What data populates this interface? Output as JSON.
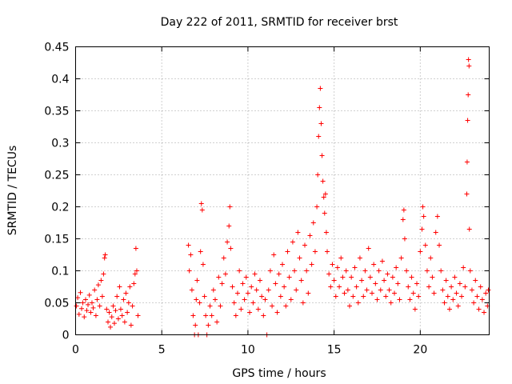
{
  "chart_data": {
    "type": "scatter",
    "title": "Day 222 of 2011, SRMTID for receiver brst",
    "xlabel": "GPS time / hours",
    "ylabel": "SRMTID / TECUs",
    "xlim": [
      0,
      24
    ],
    "ylim": [
      0,
      0.45
    ],
    "xticks": [
      0,
      5,
      10,
      15,
      20
    ],
    "xtick_labels": [
      "0",
      "5",
      "10",
      "15",
      "20"
    ],
    "yticks": [
      0,
      0.05,
      0.1,
      0.15,
      0.2,
      0.25,
      0.3,
      0.35,
      0.4,
      0.45
    ],
    "ytick_labels": [
      "0",
      "0.05",
      "0.1",
      "0.15",
      "0.2",
      "0.25",
      "0.3",
      "0.35",
      "0.4",
      "0.45"
    ],
    "grid": true,
    "marker": "plus",
    "color": "#ff0000",
    "series": [
      {
        "points": [
          [
            0.05,
            0.045
          ],
          [
            0.12,
            0.058
          ],
          [
            0.2,
            0.032
          ],
          [
            0.28,
            0.066
          ],
          [
            0.35,
            0.041
          ],
          [
            0.42,
            0.05
          ],
          [
            0.5,
            0.028
          ],
          [
            0.58,
            0.055
          ],
          [
            0.65,
            0.038
          ],
          [
            0.72,
            0.047
          ],
          [
            0.8,
            0.062
          ],
          [
            0.88,
            0.035
          ],
          [
            0.95,
            0.05
          ],
          [
            1.02,
            0.042
          ],
          [
            1.1,
            0.07
          ],
          [
            1.18,
            0.03
          ],
          [
            1.25,
            0.055
          ],
          [
            1.32,
            0.078
          ],
          [
            1.4,
            0.045
          ],
          [
            1.48,
            0.085
          ],
          [
            1.55,
            0.06
          ],
          [
            1.62,
            0.095
          ],
          [
            1.68,
            0.12
          ],
          [
            1.72,
            0.125
          ],
          [
            1.8,
            0.04
          ],
          [
            1.88,
            0.02
          ],
          [
            1.95,
            0.035
          ],
          [
            2.02,
            0.012
          ],
          [
            2.1,
            0.028
          ],
          [
            2.18,
            0.045
          ],
          [
            2.25,
            0.018
          ],
          [
            2.32,
            0.038
          ],
          [
            2.4,
            0.06
          ],
          [
            2.48,
            0.025
          ],
          [
            2.55,
            0.075
          ],
          [
            2.62,
            0.04
          ],
          [
            2.7,
            0.03
          ],
          [
            2.78,
            0.055
          ],
          [
            2.85,
            0.02
          ],
          [
            2.92,
            0.065
          ],
          [
            3.0,
            0.035
          ],
          [
            3.08,
            0.05
          ],
          [
            3.15,
            0.075
          ],
          [
            3.22,
            0.015
          ],
          [
            3.3,
            0.045
          ],
          [
            3.38,
            0.08
          ],
          [
            3.45,
            0.095
          ],
          [
            3.5,
            0.135
          ],
          [
            3.55,
            0.1
          ],
          [
            3.62,
            0.03
          ],
          [
            6.55,
            0.14
          ],
          [
            6.6,
            0.1
          ],
          [
            6.68,
            0.125
          ],
          [
            6.75,
            0.07
          ],
          [
            6.82,
            0.03
          ],
          [
            6.9,
            0.0
          ],
          [
            6.95,
            0.015
          ],
          [
            7.0,
            0.055
          ],
          [
            7.05,
            0.085
          ],
          [
            7.12,
            0.0
          ],
          [
            7.2,
            0.05
          ],
          [
            7.25,
            0.13
          ],
          [
            7.3,
            0.205
          ],
          [
            7.35,
            0.195
          ],
          [
            7.4,
            0.11
          ],
          [
            7.48,
            0.06
          ],
          [
            7.55,
            0.03
          ],
          [
            7.62,
            0.0
          ],
          [
            7.7,
            0.015
          ],
          [
            7.8,
            0.045
          ],
          [
            7.9,
            0.03
          ],
          [
            8.0,
            0.07
          ],
          [
            8.1,
            0.055
          ],
          [
            8.2,
            0.02
          ],
          [
            8.3,
            0.09
          ],
          [
            8.4,
            0.045
          ],
          [
            8.5,
            0.08
          ],
          [
            8.6,
            0.12
          ],
          [
            8.7,
            0.095
          ],
          [
            8.8,
            0.145
          ],
          [
            8.9,
            0.17
          ],
          [
            8.95,
            0.2
          ],
          [
            9.0,
            0.135
          ],
          [
            9.1,
            0.075
          ],
          [
            9.2,
            0.05
          ],
          [
            9.3,
            0.03
          ],
          [
            9.4,
            0.065
          ],
          [
            9.5,
            0.1
          ],
          [
            9.6,
            0.04
          ],
          [
            9.7,
            0.08
          ],
          [
            9.8,
            0.055
          ],
          [
            9.9,
            0.09
          ],
          [
            10.0,
            0.065
          ],
          [
            10.1,
            0.035
          ],
          [
            10.2,
            0.075
          ],
          [
            10.3,
            0.05
          ],
          [
            10.4,
            0.095
          ],
          [
            10.5,
            0.07
          ],
          [
            10.6,
            0.04
          ],
          [
            10.7,
            0.085
          ],
          [
            10.8,
            0.06
          ],
          [
            10.9,
            0.03
          ],
          [
            11.0,
            0.055
          ],
          [
            11.1,
            0.0
          ],
          [
            11.2,
            0.07
          ],
          [
            11.3,
            0.1
          ],
          [
            11.4,
            0.045
          ],
          [
            11.5,
            0.125
          ],
          [
            11.6,
            0.08
          ],
          [
            11.7,
            0.035
          ],
          [
            11.8,
            0.095
          ],
          [
            11.9,
            0.06
          ],
          [
            12.0,
            0.11
          ],
          [
            12.1,
            0.075
          ],
          [
            12.2,
            0.045
          ],
          [
            12.3,
            0.13
          ],
          [
            12.4,
            0.09
          ],
          [
            12.5,
            0.055
          ],
          [
            12.6,
            0.145
          ],
          [
            12.7,
            0.1
          ],
          [
            12.8,
            0.07
          ],
          [
            12.9,
            0.16
          ],
          [
            13.0,
            0.12
          ],
          [
            13.1,
            0.085
          ],
          [
            13.2,
            0.05
          ],
          [
            13.3,
            0.14
          ],
          [
            13.4,
            0.1
          ],
          [
            13.5,
            0.065
          ],
          [
            13.6,
            0.155
          ],
          [
            13.7,
            0.11
          ],
          [
            13.8,
            0.175
          ],
          [
            13.9,
            0.13
          ],
          [
            14.0,
            0.2
          ],
          [
            14.05,
            0.25
          ],
          [
            14.1,
            0.31
          ],
          [
            14.15,
            0.355
          ],
          [
            14.2,
            0.385
          ],
          [
            14.25,
            0.33
          ],
          [
            14.3,
            0.28
          ],
          [
            14.35,
            0.24
          ],
          [
            14.4,
            0.215
          ],
          [
            14.45,
            0.19
          ],
          [
            14.5,
            0.22
          ],
          [
            14.55,
            0.16
          ],
          [
            14.6,
            0.13
          ],
          [
            14.7,
            0.095
          ],
          [
            14.8,
            0.075
          ],
          [
            14.9,
            0.11
          ],
          [
            15.0,
            0.085
          ],
          [
            15.1,
            0.06
          ],
          [
            15.2,
            0.105
          ],
          [
            15.3,
            0.075
          ],
          [
            15.4,
            0.12
          ],
          [
            15.5,
            0.09
          ],
          [
            15.6,
            0.065
          ],
          [
            15.7,
            0.1
          ],
          [
            15.8,
            0.07
          ],
          [
            15.9,
            0.045
          ],
          [
            16.0,
            0.09
          ],
          [
            16.1,
            0.06
          ],
          [
            16.2,
            0.105
          ],
          [
            16.3,
            0.075
          ],
          [
            16.4,
            0.05
          ],
          [
            16.5,
            0.12
          ],
          [
            16.6,
            0.085
          ],
          [
            16.7,
            0.06
          ],
          [
            16.8,
            0.1
          ],
          [
            16.9,
            0.07
          ],
          [
            17.0,
            0.135
          ],
          [
            17.1,
            0.09
          ],
          [
            17.2,
            0.065
          ],
          [
            17.3,
            0.11
          ],
          [
            17.4,
            0.08
          ],
          [
            17.5,
            0.055
          ],
          [
            17.6,
            0.1
          ],
          [
            17.7,
            0.07
          ],
          [
            17.8,
            0.115
          ],
          [
            17.9,
            0.085
          ],
          [
            18.0,
            0.06
          ],
          [
            18.1,
            0.095
          ],
          [
            18.2,
            0.07
          ],
          [
            18.3,
            0.05
          ],
          [
            18.4,
            0.09
          ],
          [
            18.5,
            0.065
          ],
          [
            18.6,
            0.105
          ],
          [
            18.7,
            0.08
          ],
          [
            18.8,
            0.055
          ],
          [
            18.9,
            0.12
          ],
          [
            19.0,
            0.18
          ],
          [
            19.05,
            0.195
          ],
          [
            19.1,
            0.15
          ],
          [
            19.2,
            0.1
          ],
          [
            19.3,
            0.075
          ],
          [
            19.4,
            0.055
          ],
          [
            19.5,
            0.09
          ],
          [
            19.6,
            0.065
          ],
          [
            19.7,
            0.04
          ],
          [
            19.8,
            0.08
          ],
          [
            19.9,
            0.06
          ],
          [
            20.0,
            0.13
          ],
          [
            20.1,
            0.165
          ],
          [
            20.15,
            0.2
          ],
          [
            20.2,
            0.185
          ],
          [
            20.3,
            0.14
          ],
          [
            20.4,
            0.1
          ],
          [
            20.5,
            0.075
          ],
          [
            20.6,
            0.12
          ],
          [
            20.7,
            0.09
          ],
          [
            20.8,
            0.065
          ],
          [
            20.9,
            0.16
          ],
          [
            21.0,
            0.185
          ],
          [
            21.1,
            0.14
          ],
          [
            21.2,
            0.1
          ],
          [
            21.3,
            0.07
          ],
          [
            21.4,
            0.05
          ],
          [
            21.5,
            0.085
          ],
          [
            21.6,
            0.06
          ],
          [
            21.7,
            0.04
          ],
          [
            21.8,
            0.075
          ],
          [
            21.9,
            0.055
          ],
          [
            22.0,
            0.09
          ],
          [
            22.1,
            0.065
          ],
          [
            22.2,
            0.045
          ],
          [
            22.3,
            0.08
          ],
          [
            22.4,
            0.06
          ],
          [
            22.5,
            0.105
          ],
          [
            22.6,
            0.075
          ],
          [
            22.7,
            0.22
          ],
          [
            22.72,
            0.27
          ],
          [
            22.75,
            0.335
          ],
          [
            22.78,
            0.375
          ],
          [
            22.8,
            0.43
          ],
          [
            22.83,
            0.42
          ],
          [
            22.85,
            0.165
          ],
          [
            22.9,
            0.1
          ],
          [
            23.0,
            0.07
          ],
          [
            23.1,
            0.05
          ],
          [
            23.2,
            0.085
          ],
          [
            23.3,
            0.06
          ],
          [
            23.4,
            0.04
          ],
          [
            23.5,
            0.075
          ],
          [
            23.6,
            0.055
          ],
          [
            23.7,
            0.035
          ],
          [
            23.8,
            0.065
          ],
          [
            23.9,
            0.045
          ],
          [
            23.95,
            0.07
          ]
        ]
      }
    ]
  }
}
